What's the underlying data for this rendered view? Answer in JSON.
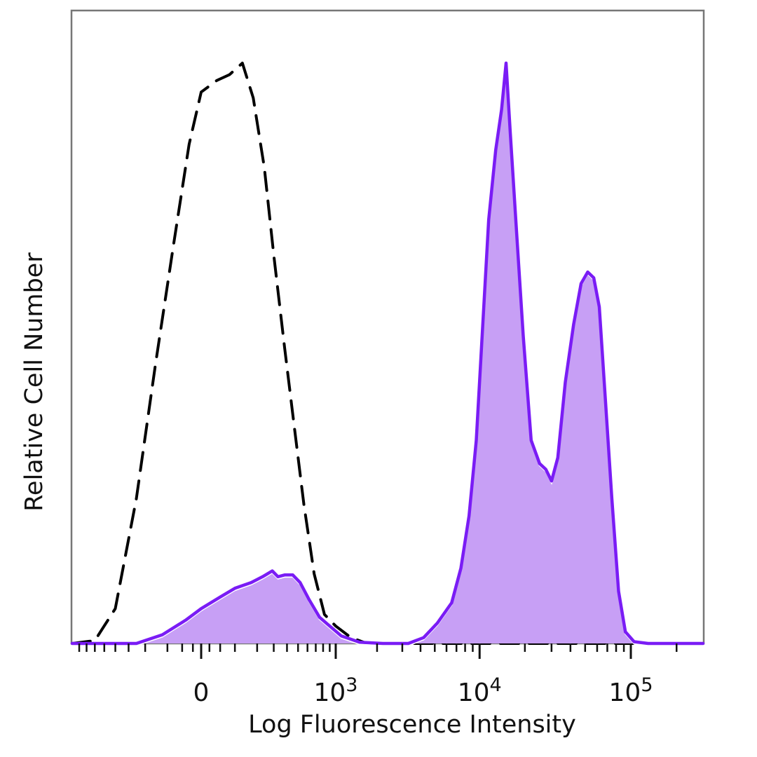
{
  "chart_data": {
    "type": "area",
    "xlabel": "Log Fluorescence Intensity",
    "ylabel": "Relative Cell Number",
    "x_scale": "biexponential",
    "y_range": [
      0,
      100
    ],
    "grid": false,
    "x_tick_labels": [
      {
        "value": 0,
        "base": "0",
        "exp": ""
      },
      {
        "value": 1000,
        "base": "10",
        "exp": "3"
      },
      {
        "value": 10000,
        "base": "10",
        "exp": "4"
      },
      {
        "value": 100000,
        "base": "10",
        "exp": "5"
      }
    ],
    "series": [
      {
        "role": "control",
        "style": "dashed",
        "color": "#000000",
        "fill": "none",
        "points": [
          [
            -1200,
            0
          ],
          [
            -600,
            0.5
          ],
          [
            -400,
            6
          ],
          [
            -250,
            25
          ],
          [
            -150,
            48
          ],
          [
            -80,
            68
          ],
          [
            -30,
            86
          ],
          [
            0,
            95
          ],
          [
            40,
            97
          ],
          [
            80,
            98
          ],
          [
            130,
            100
          ],
          [
            180,
            94
          ],
          [
            240,
            82
          ],
          [
            300,
            67
          ],
          [
            380,
            51
          ],
          [
            460,
            38
          ],
          [
            560,
            24
          ],
          [
            680,
            12
          ],
          [
            820,
            5
          ],
          [
            1000,
            3
          ],
          [
            1300,
            1
          ],
          [
            1700,
            0
          ],
          [
            3000,
            0
          ],
          [
            400000,
            0
          ]
        ]
      },
      {
        "role": "stained",
        "style": "solid",
        "color": "#7a1cf5",
        "fill": "#c79ff5",
        "points": [
          [
            -1200,
            0
          ],
          [
            -600,
            0
          ],
          [
            -250,
            0
          ],
          [
            -120,
            1.5
          ],
          [
            -40,
            4
          ],
          [
            0,
            6
          ],
          [
            50,
            8
          ],
          [
            100,
            9.5
          ],
          [
            170,
            10.5
          ],
          [
            230,
            11.5
          ],
          [
            290,
            12.5
          ],
          [
            330,
            11.5
          ],
          [
            380,
            11.8
          ],
          [
            450,
            11.8
          ],
          [
            520,
            10.5
          ],
          [
            620,
            7.5
          ],
          [
            750,
            4.5
          ],
          [
            900,
            3
          ],
          [
            1100,
            1.3
          ],
          [
            1500,
            0.2
          ],
          [
            2200,
            0
          ],
          [
            3300,
            0
          ],
          [
            4200,
            1
          ],
          [
            5200,
            3.5
          ],
          [
            6500,
            7
          ],
          [
            7500,
            13
          ],
          [
            8500,
            22
          ],
          [
            9500,
            35
          ],
          [
            10500,
            55
          ],
          [
            11500,
            73
          ],
          [
            12800,
            85
          ],
          [
            14000,
            92
          ],
          [
            15000,
            100
          ],
          [
            16000,
            88
          ],
          [
            17500,
            72
          ],
          [
            19500,
            53
          ],
          [
            22000,
            35
          ],
          [
            25000,
            31
          ],
          [
            27500,
            30
          ],
          [
            30000,
            28
          ],
          [
            33000,
            32
          ],
          [
            37000,
            45
          ],
          [
            42000,
            55
          ],
          [
            47000,
            62
          ],
          [
            52000,
            64
          ],
          [
            57000,
            63
          ],
          [
            62000,
            58
          ],
          [
            68000,
            42
          ],
          [
            75000,
            25
          ],
          [
            83000,
            9
          ],
          [
            92000,
            2
          ],
          [
            105000,
            0.3
          ],
          [
            130000,
            0
          ],
          [
            400000,
            0
          ]
        ]
      }
    ]
  }
}
